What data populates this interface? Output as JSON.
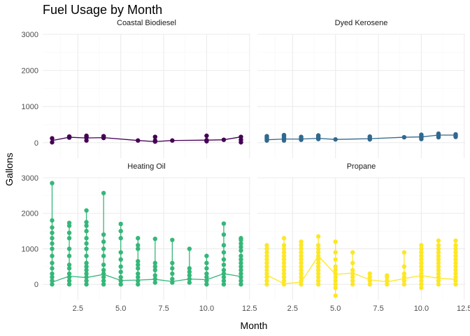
{
  "chart_data": {
    "type": "line",
    "title": "Fuel Usage by Month",
    "xlabel": "Month",
    "ylabel": "Gallons",
    "xlim": [
      0.45,
      12.55
    ],
    "ylim": [
      -430,
      3000
    ],
    "x_ticks": [
      2.5,
      5.0,
      7.5,
      10.0,
      12.5
    ],
    "y_ticks": [
      0,
      1000,
      2000,
      3000
    ],
    "grid": true,
    "legend": "none",
    "panels": [
      {
        "name": "Coastal Biodiesel",
        "color": "#440154",
        "line": {
          "x": [
            1,
            2,
            3,
            4,
            6,
            7,
            8,
            10,
            11,
            12
          ],
          "y": [
            60,
            150,
            130,
            140,
            60,
            30,
            60,
            70,
            80,
            160
          ]
        },
        "points": [
          [
            1,
            10
          ],
          [
            1,
            120
          ],
          [
            2,
            140
          ],
          [
            2,
            160
          ],
          [
            2,
            170
          ],
          [
            3,
            60
          ],
          [
            3,
            140
          ],
          [
            3,
            170
          ],
          [
            3,
            190
          ],
          [
            4,
            130
          ],
          [
            4,
            170
          ],
          [
            4,
            180
          ],
          [
            6,
            60
          ],
          [
            7,
            30
          ],
          [
            7,
            60
          ],
          [
            7,
            160
          ],
          [
            8,
            60
          ],
          [
            10,
            40
          ],
          [
            10,
            70
          ],
          [
            10,
            190
          ],
          [
            11,
            80
          ],
          [
            12,
            10
          ],
          [
            12,
            80
          ],
          [
            12,
            160
          ]
        ]
      },
      {
        "name": "Dyed Kerosene",
        "color": "#31688e",
        "line": {
          "x": [
            1,
            2,
            3,
            4,
            5,
            7,
            9,
            10,
            11,
            12
          ],
          "y": [
            80,
            100,
            100,
            120,
            90,
            110,
            150,
            160,
            210,
            210
          ]
        },
        "points": [
          [
            1,
            60
          ],
          [
            1,
            100
          ],
          [
            1,
            140
          ],
          [
            1,
            180
          ],
          [
            2,
            60
          ],
          [
            2,
            100
          ],
          [
            2,
            140
          ],
          [
            2,
            180
          ],
          [
            2,
            210
          ],
          [
            3,
            80
          ],
          [
            3,
            120
          ],
          [
            3,
            160
          ],
          [
            4,
            100
          ],
          [
            4,
            140
          ],
          [
            4,
            180
          ],
          [
            4,
            200
          ],
          [
            5,
            90
          ],
          [
            7,
            90
          ],
          [
            7,
            130
          ],
          [
            7,
            170
          ],
          [
            9,
            150
          ],
          [
            10,
            100
          ],
          [
            10,
            140
          ],
          [
            10,
            180
          ],
          [
            10,
            220
          ],
          [
            11,
            150
          ],
          [
            11,
            190
          ],
          [
            11,
            220
          ],
          [
            11,
            250
          ],
          [
            12,
            160
          ],
          [
            12,
            200
          ],
          [
            12,
            230
          ]
        ]
      },
      {
        "name": "Heating Oil",
        "color": "#35b779",
        "line": {
          "x": [
            1,
            2,
            3,
            4,
            5,
            6,
            7,
            8,
            9,
            10,
            11,
            12
          ],
          "y": [
            60,
            230,
            190,
            280,
            110,
            120,
            140,
            80,
            150,
            130,
            300,
            220
          ]
        },
        "points": [
          [
            1,
            0
          ],
          [
            1,
            100
          ],
          [
            1,
            200
          ],
          [
            1,
            300
          ],
          [
            1,
            450
          ],
          [
            1,
            600
          ],
          [
            1,
            800
          ],
          [
            1,
            1000
          ],
          [
            1,
            1150
          ],
          [
            1,
            1300
          ],
          [
            1,
            1450
          ],
          [
            1,
            1600
          ],
          [
            1,
            1800
          ],
          [
            1,
            2850
          ],
          [
            2,
            0
          ],
          [
            2,
            100
          ],
          [
            2,
            200
          ],
          [
            2,
            300
          ],
          [
            2,
            450
          ],
          [
            2,
            550
          ],
          [
            2,
            800
          ],
          [
            2,
            1000
          ],
          [
            2,
            1300
          ],
          [
            2,
            1450
          ],
          [
            2,
            1650
          ],
          [
            2,
            1730
          ],
          [
            3,
            0
          ],
          [
            3,
            100
          ],
          [
            3,
            200
          ],
          [
            3,
            300
          ],
          [
            3,
            400
          ],
          [
            3,
            500
          ],
          [
            3,
            600
          ],
          [
            3,
            800
          ],
          [
            3,
            1000
          ],
          [
            3,
            1150
          ],
          [
            3,
            1300
          ],
          [
            3,
            1500
          ],
          [
            3,
            1650
          ],
          [
            3,
            1750
          ],
          [
            3,
            2080
          ],
          [
            4,
            0
          ],
          [
            4,
            100
          ],
          [
            4,
            200
          ],
          [
            4,
            300
          ],
          [
            4,
            400
          ],
          [
            4,
            550
          ],
          [
            4,
            800
          ],
          [
            4,
            1000
          ],
          [
            4,
            1200
          ],
          [
            4,
            1400
          ],
          [
            4,
            2570
          ],
          [
            5,
            0
          ],
          [
            5,
            100
          ],
          [
            5,
            200
          ],
          [
            5,
            350
          ],
          [
            5,
            500
          ],
          [
            5,
            700
          ],
          [
            5,
            900
          ],
          [
            5,
            1300
          ],
          [
            5,
            1500
          ],
          [
            5,
            1700
          ],
          [
            6,
            0
          ],
          [
            6,
            100
          ],
          [
            6,
            200
          ],
          [
            6,
            300
          ],
          [
            6,
            450
          ],
          [
            6,
            550
          ],
          [
            6,
            650
          ],
          [
            6,
            1000
          ],
          [
            6,
            1100
          ],
          [
            6,
            1300
          ],
          [
            7,
            50
          ],
          [
            7,
            150
          ],
          [
            7,
            250
          ],
          [
            7,
            400
          ],
          [
            7,
            500
          ],
          [
            7,
            600
          ],
          [
            7,
            1280
          ],
          [
            8,
            50
          ],
          [
            8,
            150
          ],
          [
            8,
            300
          ],
          [
            8,
            450
          ],
          [
            8,
            600
          ],
          [
            8,
            1250
          ],
          [
            9,
            50
          ],
          [
            9,
            150
          ],
          [
            9,
            250
          ],
          [
            9,
            350
          ],
          [
            9,
            450
          ],
          [
            9,
            1000
          ],
          [
            10,
            0
          ],
          [
            10,
            100
          ],
          [
            10,
            200
          ],
          [
            10,
            300
          ],
          [
            10,
            450
          ],
          [
            10,
            600
          ],
          [
            10,
            800
          ],
          [
            11,
            0
          ],
          [
            11,
            100
          ],
          [
            11,
            200
          ],
          [
            11,
            300
          ],
          [
            11,
            400
          ],
          [
            11,
            550
          ],
          [
            11,
            700
          ],
          [
            11,
            900
          ],
          [
            11,
            1100
          ],
          [
            11,
            1400
          ],
          [
            11,
            1710
          ],
          [
            12,
            0
          ],
          [
            12,
            100
          ],
          [
            12,
            200
          ],
          [
            12,
            300
          ],
          [
            12,
            400
          ],
          [
            12,
            500
          ],
          [
            12,
            600
          ],
          [
            12,
            700
          ],
          [
            12,
            800
          ],
          [
            12,
            950
          ],
          [
            12,
            1050
          ],
          [
            12,
            1150
          ],
          [
            12,
            1250
          ],
          [
            12,
            1300
          ]
        ]
      },
      {
        "name": "Propane",
        "color": "#fde725",
        "line": {
          "x": [
            1,
            2,
            3,
            4,
            5,
            6,
            7,
            8,
            9,
            10,
            11,
            12
          ],
          "y": [
            260,
            20,
            60,
            800,
            280,
            320,
            130,
            70,
            160,
            250,
            170,
            140
          ]
        },
        "points": [
          [
            1,
            0
          ],
          [
            1,
            100
          ],
          [
            1,
            200
          ],
          [
            1,
            300
          ],
          [
            1,
            400
          ],
          [
            1,
            500
          ],
          [
            1,
            600
          ],
          [
            1,
            700
          ],
          [
            1,
            800
          ],
          [
            1,
            900
          ],
          [
            1,
            1000
          ],
          [
            1,
            1100
          ],
          [
            2,
            0
          ],
          [
            2,
            100
          ],
          [
            2,
            200
          ],
          [
            2,
            300
          ],
          [
            2,
            400
          ],
          [
            2,
            500
          ],
          [
            2,
            600
          ],
          [
            2,
            700
          ],
          [
            2,
            800
          ],
          [
            2,
            900
          ],
          [
            2,
            1000
          ],
          [
            2,
            1100
          ],
          [
            2,
            1300
          ],
          [
            3,
            0
          ],
          [
            3,
            100
          ],
          [
            3,
            200
          ],
          [
            3,
            300
          ],
          [
            3,
            400
          ],
          [
            3,
            500
          ],
          [
            3,
            600
          ],
          [
            3,
            700
          ],
          [
            3,
            800
          ],
          [
            3,
            900
          ],
          [
            3,
            1000
          ],
          [
            3,
            1100
          ],
          [
            3,
            1200
          ],
          [
            4,
            0
          ],
          [
            4,
            100
          ],
          [
            4,
            200
          ],
          [
            4,
            300
          ],
          [
            4,
            400
          ],
          [
            4,
            500
          ],
          [
            4,
            600
          ],
          [
            4,
            700
          ],
          [
            4,
            800
          ],
          [
            4,
            900
          ],
          [
            4,
            1000
          ],
          [
            4,
            1100
          ],
          [
            4,
            1350
          ],
          [
            5,
            -320
          ],
          [
            5,
            -100
          ],
          [
            5,
            0
          ],
          [
            5,
            100
          ],
          [
            5,
            200
          ],
          [
            5,
            300
          ],
          [
            5,
            400
          ],
          [
            5,
            500
          ],
          [
            5,
            700
          ],
          [
            5,
            900
          ],
          [
            5,
            1200
          ],
          [
            6,
            0
          ],
          [
            6,
            100
          ],
          [
            6,
            200
          ],
          [
            6,
            300
          ],
          [
            6,
            400
          ],
          [
            6,
            600
          ],
          [
            6,
            900
          ],
          [
            7,
            0
          ],
          [
            7,
            100
          ],
          [
            7,
            200
          ],
          [
            7,
            300
          ],
          [
            8,
            0
          ],
          [
            8,
            100
          ],
          [
            8,
            200
          ],
          [
            8,
            250
          ],
          [
            9,
            0
          ],
          [
            9,
            100
          ],
          [
            9,
            200
          ],
          [
            9,
            300
          ],
          [
            9,
            500
          ],
          [
            9,
            900
          ],
          [
            10,
            -100
          ],
          [
            10,
            0
          ],
          [
            10,
            100
          ],
          [
            10,
            200
          ],
          [
            10,
            300
          ],
          [
            10,
            400
          ],
          [
            10,
            500
          ],
          [
            10,
            600
          ],
          [
            10,
            700
          ],
          [
            10,
            800
          ],
          [
            10,
            900
          ],
          [
            10,
            1000
          ],
          [
            10,
            1100
          ],
          [
            11,
            0
          ],
          [
            11,
            100
          ],
          [
            11,
            200
          ],
          [
            11,
            300
          ],
          [
            11,
            400
          ],
          [
            11,
            500
          ],
          [
            11,
            600
          ],
          [
            11,
            700
          ],
          [
            11,
            800
          ],
          [
            11,
            900
          ],
          [
            11,
            1000
          ],
          [
            11,
            1100
          ],
          [
            11,
            1230
          ],
          [
            12,
            0
          ],
          [
            12,
            100
          ],
          [
            12,
            200
          ],
          [
            12,
            300
          ],
          [
            12,
            400
          ],
          [
            12,
            500
          ],
          [
            12,
            600
          ],
          [
            12,
            700
          ],
          [
            12,
            800
          ],
          [
            12,
            900
          ],
          [
            12,
            1000
          ],
          [
            12,
            1100
          ],
          [
            12,
            1230
          ]
        ]
      }
    ]
  }
}
